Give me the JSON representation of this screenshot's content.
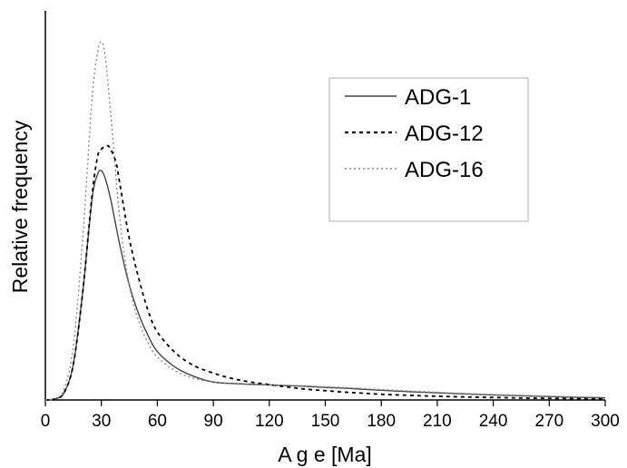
{
  "chart_data": {
    "type": "line",
    "title": "",
    "xlabel": "A g e [Ma]",
    "ylabel": "Relative frequency",
    "xlim": [
      0,
      300
    ],
    "ylim": [
      0,
      1
    ],
    "x_ticks": [
      "0",
      "30",
      "60",
      "90",
      "120",
      "150",
      "180",
      "210",
      "240",
      "270",
      "300"
    ],
    "y_ticks": [],
    "grid": false,
    "legend_position": "top-right",
    "series": [
      {
        "name": "ADG-1",
        "color": "#444444",
        "dash": "",
        "x": [
          0,
          5,
          10,
          15,
          20,
          25,
          28,
          30,
          32,
          35,
          40,
          45,
          50,
          55,
          60,
          70,
          80,
          90,
          100,
          110,
          120,
          130,
          140,
          150,
          160,
          170,
          180,
          200,
          220,
          240,
          260,
          280,
          300
        ],
        "y": [
          0,
          0.003,
          0.02,
          0.1,
          0.3,
          0.56,
          0.63,
          0.64,
          0.62,
          0.56,
          0.43,
          0.32,
          0.24,
          0.18,
          0.135,
          0.09,
          0.065,
          0.05,
          0.046,
          0.044,
          0.042,
          0.04,
          0.038,
          0.035,
          0.033,
          0.03,
          0.027,
          0.022,
          0.018,
          0.014,
          0.011,
          0.008,
          0.006
        ]
      },
      {
        "name": "ADG-12",
        "color": "#000000",
        "dash": "4 4",
        "x": [
          0,
          5,
          10,
          15,
          20,
          25,
          28,
          30,
          33,
          35,
          38,
          40,
          45,
          50,
          55,
          60,
          70,
          80,
          90,
          100,
          110,
          120,
          130,
          140,
          150,
          160,
          170,
          180,
          200,
          220,
          240,
          260,
          280,
          300
        ],
        "y": [
          0,
          0.003,
          0.02,
          0.1,
          0.3,
          0.57,
          0.68,
          0.7,
          0.71,
          0.7,
          0.66,
          0.6,
          0.45,
          0.34,
          0.25,
          0.19,
          0.13,
          0.095,
          0.075,
          0.06,
          0.05,
          0.043,
          0.036,
          0.03,
          0.026,
          0.022,
          0.019,
          0.016,
          0.012,
          0.009,
          0.007,
          0.005,
          0.004,
          0.003
        ]
      },
      {
        "name": "ADG-16",
        "color": "#8a8a8a",
        "dash": "2 3",
        "x": [
          0,
          5,
          10,
          15,
          20,
          25,
          28,
          30,
          32,
          35,
          40,
          45,
          50,
          55,
          60,
          70,
          80,
          90,
          100,
          110,
          120,
          130,
          140,
          150,
          160,
          170,
          180,
          200,
          220,
          240,
          260,
          280,
          300
        ],
        "y": [
          0,
          0.004,
          0.03,
          0.15,
          0.45,
          0.84,
          0.97,
          1.0,
          0.96,
          0.8,
          0.5,
          0.32,
          0.22,
          0.16,
          0.12,
          0.08,
          0.06,
          0.05,
          0.045,
          0.043,
          0.042,
          0.041,
          0.039,
          0.037,
          0.035,
          0.032,
          0.029,
          0.024,
          0.019,
          0.015,
          0.012,
          0.009,
          0.007
        ]
      }
    ]
  }
}
